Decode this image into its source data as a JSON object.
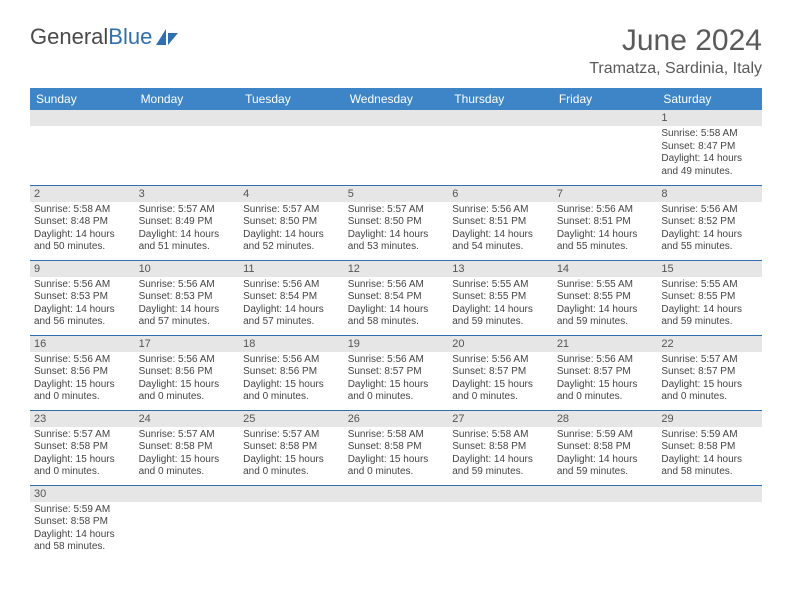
{
  "logo": {
    "text_part1": "General",
    "text_part2": "Blue",
    "accent_color": "#2f6fb0"
  },
  "header": {
    "title": "June 2024",
    "location": "Tramatza, Sardinia, Italy"
  },
  "calendar": {
    "header_bg": "#3d85c6",
    "header_fg": "#ffffff",
    "row_border": "#2f6fb0",
    "daynum_bg": "#e6e6e6",
    "weekdays": [
      "Sunday",
      "Monday",
      "Tuesday",
      "Wednesday",
      "Thursday",
      "Friday",
      "Saturday"
    ],
    "weeks": [
      [
        null,
        null,
        null,
        null,
        null,
        null,
        {
          "n": "1",
          "sunrise": "5:58 AM",
          "sunset": "8:47 PM",
          "daylight": "14 hours and 49 minutes."
        }
      ],
      [
        {
          "n": "2",
          "sunrise": "5:58 AM",
          "sunset": "8:48 PM",
          "daylight": "14 hours and 50 minutes."
        },
        {
          "n": "3",
          "sunrise": "5:57 AM",
          "sunset": "8:49 PM",
          "daylight": "14 hours and 51 minutes."
        },
        {
          "n": "4",
          "sunrise": "5:57 AM",
          "sunset": "8:50 PM",
          "daylight": "14 hours and 52 minutes."
        },
        {
          "n": "5",
          "sunrise": "5:57 AM",
          "sunset": "8:50 PM",
          "daylight": "14 hours and 53 minutes."
        },
        {
          "n": "6",
          "sunrise": "5:56 AM",
          "sunset": "8:51 PM",
          "daylight": "14 hours and 54 minutes."
        },
        {
          "n": "7",
          "sunrise": "5:56 AM",
          "sunset": "8:51 PM",
          "daylight": "14 hours and 55 minutes."
        },
        {
          "n": "8",
          "sunrise": "5:56 AM",
          "sunset": "8:52 PM",
          "daylight": "14 hours and 55 minutes."
        }
      ],
      [
        {
          "n": "9",
          "sunrise": "5:56 AM",
          "sunset": "8:53 PM",
          "daylight": "14 hours and 56 minutes."
        },
        {
          "n": "10",
          "sunrise": "5:56 AM",
          "sunset": "8:53 PM",
          "daylight": "14 hours and 57 minutes."
        },
        {
          "n": "11",
          "sunrise": "5:56 AM",
          "sunset": "8:54 PM",
          "daylight": "14 hours and 57 minutes."
        },
        {
          "n": "12",
          "sunrise": "5:56 AM",
          "sunset": "8:54 PM",
          "daylight": "14 hours and 58 minutes."
        },
        {
          "n": "13",
          "sunrise": "5:55 AM",
          "sunset": "8:55 PM",
          "daylight": "14 hours and 59 minutes."
        },
        {
          "n": "14",
          "sunrise": "5:55 AM",
          "sunset": "8:55 PM",
          "daylight": "14 hours and 59 minutes."
        },
        {
          "n": "15",
          "sunrise": "5:55 AM",
          "sunset": "8:55 PM",
          "daylight": "14 hours and 59 minutes."
        }
      ],
      [
        {
          "n": "16",
          "sunrise": "5:56 AM",
          "sunset": "8:56 PM",
          "daylight": "15 hours and 0 minutes."
        },
        {
          "n": "17",
          "sunrise": "5:56 AM",
          "sunset": "8:56 PM",
          "daylight": "15 hours and 0 minutes."
        },
        {
          "n": "18",
          "sunrise": "5:56 AM",
          "sunset": "8:56 PM",
          "daylight": "15 hours and 0 minutes."
        },
        {
          "n": "19",
          "sunrise": "5:56 AM",
          "sunset": "8:57 PM",
          "daylight": "15 hours and 0 minutes."
        },
        {
          "n": "20",
          "sunrise": "5:56 AM",
          "sunset": "8:57 PM",
          "daylight": "15 hours and 0 minutes."
        },
        {
          "n": "21",
          "sunrise": "5:56 AM",
          "sunset": "8:57 PM",
          "daylight": "15 hours and 0 minutes."
        },
        {
          "n": "22",
          "sunrise": "5:57 AM",
          "sunset": "8:57 PM",
          "daylight": "15 hours and 0 minutes."
        }
      ],
      [
        {
          "n": "23",
          "sunrise": "5:57 AM",
          "sunset": "8:58 PM",
          "daylight": "15 hours and 0 minutes."
        },
        {
          "n": "24",
          "sunrise": "5:57 AM",
          "sunset": "8:58 PM",
          "daylight": "15 hours and 0 minutes."
        },
        {
          "n": "25",
          "sunrise": "5:57 AM",
          "sunset": "8:58 PM",
          "daylight": "15 hours and 0 minutes."
        },
        {
          "n": "26",
          "sunrise": "5:58 AM",
          "sunset": "8:58 PM",
          "daylight": "15 hours and 0 minutes."
        },
        {
          "n": "27",
          "sunrise": "5:58 AM",
          "sunset": "8:58 PM",
          "daylight": "14 hours and 59 minutes."
        },
        {
          "n": "28",
          "sunrise": "5:59 AM",
          "sunset": "8:58 PM",
          "daylight": "14 hours and 59 minutes."
        },
        {
          "n": "29",
          "sunrise": "5:59 AM",
          "sunset": "8:58 PM",
          "daylight": "14 hours and 58 minutes."
        }
      ],
      [
        {
          "n": "30",
          "sunrise": "5:59 AM",
          "sunset": "8:58 PM",
          "daylight": "14 hours and 58 minutes."
        },
        null,
        null,
        null,
        null,
        null,
        null
      ]
    ],
    "labels": {
      "sunrise": "Sunrise: ",
      "sunset": "Sunset: ",
      "daylight": "Daylight: "
    }
  }
}
